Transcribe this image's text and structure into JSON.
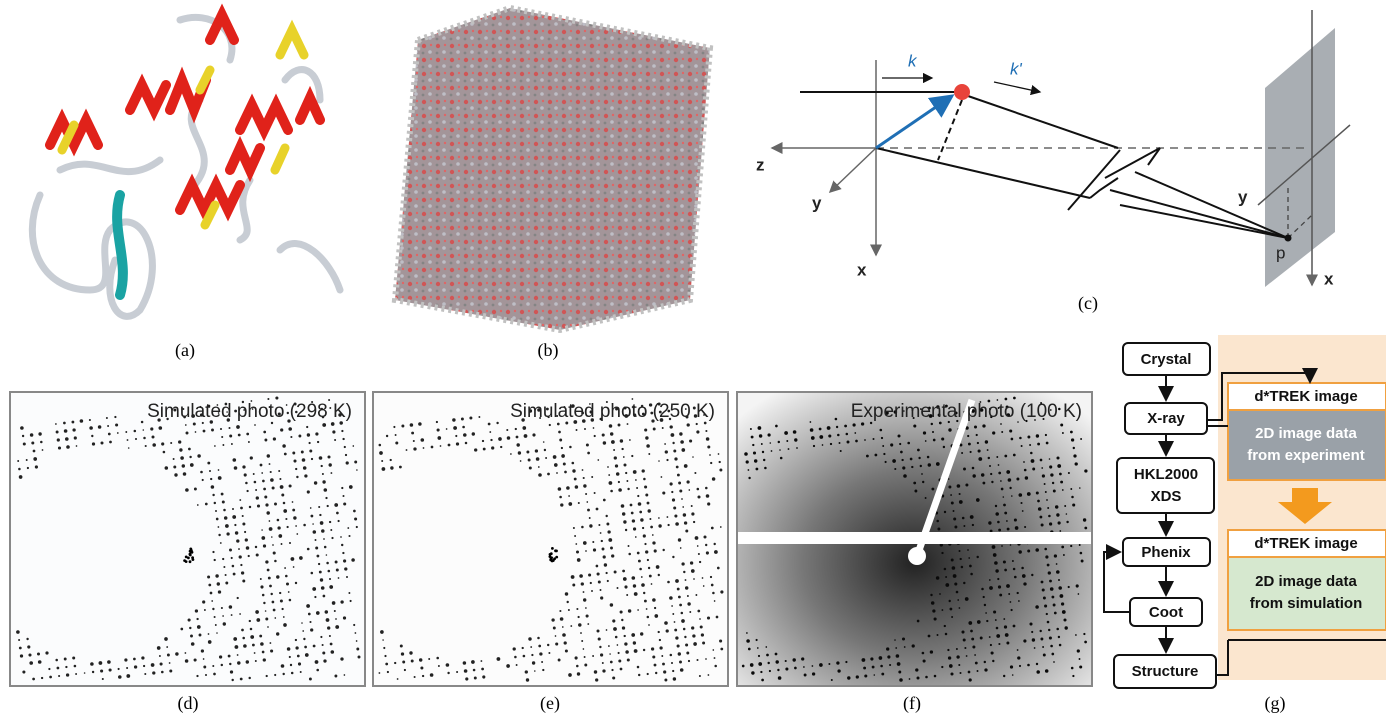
{
  "panel_labels": [
    "(a)",
    "(b)",
    "(c)",
    "(d)",
    "(e)",
    "(f)",
    "(g)"
  ],
  "geometry": {
    "k": "k",
    "k_prime": "k'",
    "origin_axes": [
      "z",
      "y",
      "x"
    ],
    "detector_axes": [
      "y",
      "x"
    ],
    "point": "p"
  },
  "photos": [
    "Simulated photo (298 K)",
    "Simulated photo (250 K)",
    "Experimental photo (100 K)"
  ],
  "flowchart": {
    "steps": [
      "Crystal",
      "X-ray",
      "HKL2000",
      "XDS",
      "Phenix",
      "Coot",
      "Structure"
    ],
    "experiment": {
      "header": "d*TREK image",
      "body": [
        "2D image data",
        "from experiment"
      ]
    },
    "simulation": {
      "header": "d*TREK image",
      "body": [
        "2D image data",
        "from simulation"
      ]
    }
  }
}
